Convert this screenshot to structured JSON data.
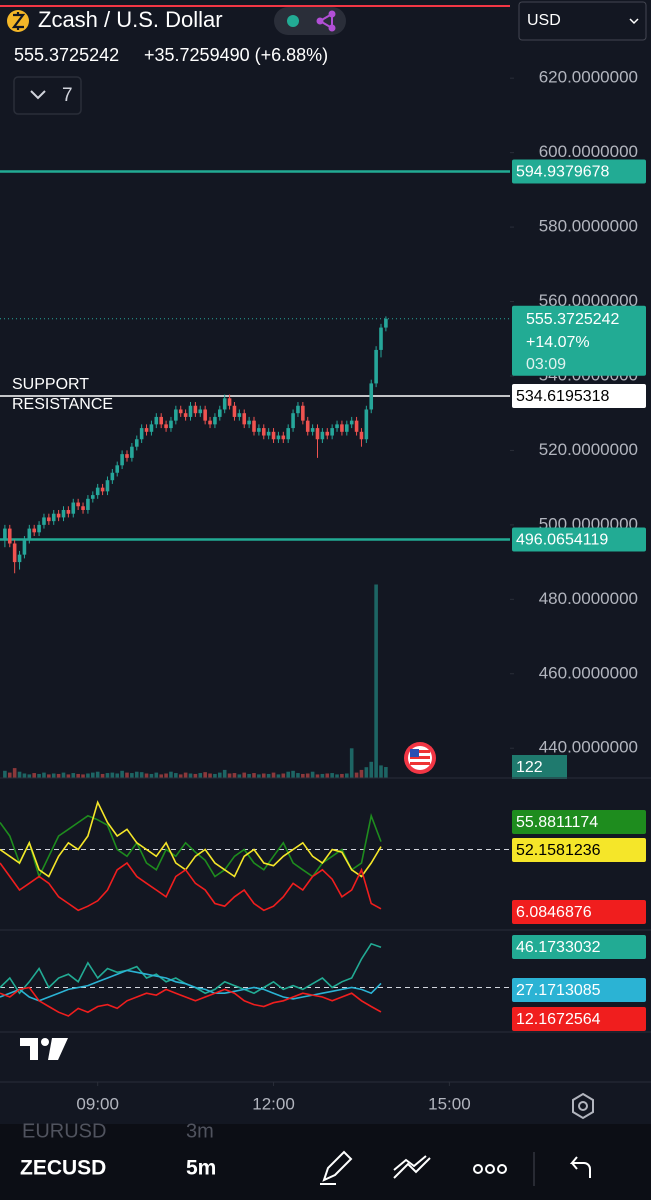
{
  "header": {
    "symbol_name": "Zcash / U.S. Dollar",
    "change": "+35.7259490 (+6.88%)",
    "indicator_count": "7",
    "currency": "USD"
  },
  "footer": {
    "previous_symbol": "EURUSD",
    "previous_interval": "3m",
    "symbol": "ZECUSD",
    "interval": "5m"
  },
  "chart_data": {
    "type": "candlestick",
    "up_color": "#26a69a",
    "down_color": "#ef5350",
    "xlim": [
      "07:20",
      "16:00"
    ],
    "xticks": [
      "09:00",
      "12:00",
      "15:00"
    ],
    "ylim": [
      432,
      641
    ],
    "yticks": [
      {
        "value": 440,
        "label": "440.0000000"
      },
      {
        "value": 460,
        "label": "460.0000000"
      },
      {
        "value": 480,
        "label": "480.0000000"
      },
      {
        "value": 500,
        "label": "500.0000000"
      },
      {
        "value": 520,
        "label": "520.0000000"
      },
      {
        "value": 540,
        "label": "540.0000000"
      },
      {
        "value": 560,
        "label": "560.0000000"
      },
      {
        "value": 580,
        "label": "580.0000000"
      },
      {
        "value": 600,
        "label": "600.0000000"
      },
      {
        "value": 620,
        "label": "620.0000000"
      }
    ],
    "candles": [
      [
        "07:25",
        496,
        500,
        494,
        499
      ],
      [
        "07:30",
        499,
        500,
        494,
        495
      ],
      [
        "07:35",
        495,
        496,
        487,
        490
      ],
      [
        "07:40",
        490,
        493,
        488,
        492
      ],
      [
        "07:45",
        492,
        497,
        491,
        496
      ],
      [
        "07:50",
        496,
        500,
        495,
        499
      ],
      [
        "07:55",
        499,
        500,
        497,
        498
      ],
      [
        "08:00",
        498,
        501,
        497,
        500
      ],
      [
        "08:05",
        500,
        503,
        499,
        502
      ],
      [
        "08:10",
        502,
        503,
        500,
        501
      ],
      [
        "08:15",
        501,
        504,
        500,
        503
      ],
      [
        "08:20",
        503,
        504,
        501,
        502
      ],
      [
        "08:25",
        502,
        505,
        501,
        504
      ],
      [
        "08:30",
        504,
        505,
        502,
        503
      ],
      [
        "08:35",
        503,
        507,
        502,
        506
      ],
      [
        "08:40",
        506,
        507,
        504,
        505
      ],
      [
        "08:45",
        505,
        506,
        503,
        504
      ],
      [
        "08:50",
        504,
        508,
        503,
        507
      ],
      [
        "08:55",
        507,
        509,
        506,
        508
      ],
      [
        "09:00",
        508,
        511,
        507,
        510
      ],
      [
        "09:05",
        510,
        511,
        508,
        509
      ],
      [
        "09:10",
        509,
        513,
        508,
        512
      ],
      [
        "09:15",
        512,
        515,
        511,
        514
      ],
      [
        "09:20",
        514,
        517,
        513,
        516
      ],
      [
        "09:25",
        516,
        520,
        515,
        519
      ],
      [
        "09:30",
        519,
        520,
        517,
        518
      ],
      [
        "09:35",
        518,
        522,
        517,
        521
      ],
      [
        "09:40",
        521,
        524,
        520,
        523
      ],
      [
        "09:45",
        523,
        527,
        522,
        526
      ],
      [
        "09:50",
        526,
        527,
        524,
        525
      ],
      [
        "09:55",
        525,
        528,
        524,
        527
      ],
      [
        "10:00",
        527,
        530,
        526,
        529
      ],
      [
        "10:05",
        529,
        530,
        526,
        527
      ],
      [
        "10:10",
        527,
        528,
        525,
        526
      ],
      [
        "10:15",
        526,
        529,
        525,
        528
      ],
      [
        "10:20",
        528,
        532,
        527,
        531
      ],
      [
        "10:25",
        531,
        532,
        529,
        530
      ],
      [
        "10:30",
        530,
        531,
        528,
        529
      ],
      [
        "10:35",
        529,
        533,
        528,
        532
      ],
      [
        "10:40",
        532,
        533,
        529,
        530
      ],
      [
        "10:45",
        530,
        532,
        529,
        531
      ],
      [
        "10:50",
        531,
        532,
        527,
        528
      ],
      [
        "10:55",
        528,
        529,
        526,
        527
      ],
      [
        "11:00",
        527,
        530,
        526,
        529
      ],
      [
        "11:05",
        529,
        532,
        528,
        531
      ],
      [
        "11:10",
        531,
        535,
        530,
        534
      ],
      [
        "11:15",
        534,
        535,
        531,
        532
      ],
      [
        "11:20",
        532,
        533,
        528,
        529
      ],
      [
        "11:25",
        529,
        531,
        528,
        530
      ],
      [
        "11:30",
        530,
        531,
        526,
        527
      ],
      [
        "11:35",
        527,
        529,
        526,
        528
      ],
      [
        "11:40",
        528,
        529,
        524,
        525
      ],
      [
        "11:45",
        525,
        527,
        524,
        526
      ],
      [
        "11:50",
        526,
        527,
        523,
        524
      ],
      [
        "11:55",
        524,
        526,
        523,
        525
      ],
      [
        "12:00",
        525,
        526,
        522,
        523
      ],
      [
        "12:05",
        523,
        525,
        522,
        524
      ],
      [
        "12:10",
        524,
        525,
        522,
        523
      ],
      [
        "12:15",
        523,
        527,
        522,
        526
      ],
      [
        "12:20",
        526,
        531,
        525,
        530
      ],
      [
        "12:25",
        530,
        533,
        529,
        532
      ],
      [
        "12:30",
        532,
        533,
        527,
        528
      ],
      [
        "12:35",
        528,
        529,
        524,
        525
      ],
      [
        "12:40",
        525,
        527,
        524,
        526
      ],
      [
        "12:45",
        526,
        527,
        518,
        523
      ],
      [
        "12:50",
        523,
        526,
        522,
        525
      ],
      [
        "12:55",
        525,
        526,
        523,
        524
      ],
      [
        "13:00",
        524,
        527,
        523,
        526
      ],
      [
        "13:05",
        526,
        528,
        525,
        527
      ],
      [
        "13:10",
        527,
        528,
        524,
        525
      ],
      [
        "13:15",
        525,
        528,
        524,
        527
      ],
      [
        "13:20",
        527,
        529,
        526,
        528
      ],
      [
        "13:25",
        528,
        529,
        524,
        525
      ],
      [
        "13:30",
        525,
        526,
        521,
        523
      ],
      [
        "13:35",
        523,
        532,
        522,
        531
      ],
      [
        "13:40",
        531,
        539,
        530,
        538
      ],
      [
        "13:45",
        538,
        548,
        537,
        547
      ],
      [
        "13:50",
        547,
        554,
        545,
        553
      ],
      [
        "13:55",
        553,
        556,
        552,
        555.3725242
      ]
    ],
    "volumes": [
      80,
      60,
      110,
      70,
      50,
      40,
      55,
      45,
      60,
      40,
      50,
      45,
      60,
      40,
      55,
      45,
      40,
      50,
      60,
      70,
      45,
      55,
      60,
      50,
      80,
      60,
      55,
      70,
      65,
      50,
      45,
      60,
      40,
      50,
      70,
      55,
      40,
      60,
      50,
      45,
      55,
      65,
      50,
      45,
      60,
      90,
      50,
      55,
      40,
      60,
      45,
      55,
      40,
      50,
      45,
      60,
      40,
      50,
      70,
      80,
      55,
      45,
      50,
      70,
      40,
      45,
      50,
      55,
      40,
      45,
      50,
      330,
      60,
      90,
      120,
      180,
      2150,
      140,
      122
    ],
    "levels": [
      {
        "value": 594.9379678,
        "color": "#22ab94"
      },
      {
        "value": 534.6195318,
        "color": "#ffffff",
        "notes": [
          "SUPPORT",
          "RESISTANCE"
        ]
      },
      {
        "value": 496.0654119,
        "color": "#22ab94"
      }
    ],
    "last_price_change": "+14.07%",
    "countdown": "03:09",
    "indicator_times": [
      "07:20",
      "07:30",
      "07:40",
      "07:50",
      "08:00",
      "08:10",
      "08:20",
      "08:30",
      "08:40",
      "08:50",
      "09:00",
      "09:10",
      "09:20",
      "09:30",
      "09:40",
      "09:50",
      "10:00",
      "10:10",
      "10:20",
      "10:30",
      "10:40",
      "10:50",
      "11:00",
      "11:10",
      "11:20",
      "11:30",
      "11:40",
      "11:50",
      "12:00",
      "12:10",
      "12:20",
      "12:30",
      "12:40",
      "12:50",
      "13:00",
      "13:10",
      "13:20",
      "13:30",
      "13:40",
      "13:50"
    ],
    "panes": [
      {
        "ylim": [
          0,
          100
        ],
        "level": 50,
        "series": [
          {
            "color": "#1e8c1e",
            "values": [
              70,
              60,
              40,
              55,
              30,
              45,
              60,
              65,
              70,
              75,
              72,
              68,
              50,
              45,
              55,
              40,
              35,
              50,
              45,
              55,
              48,
              42,
              30,
              35,
              45,
              50,
              40,
              35,
              45,
              55,
              40,
              35,
              30,
              40,
              45,
              50,
              35,
              40,
              75,
              55.8811174
            ]
          },
          {
            "color": "#f5e629",
            "values": [
              50,
              45,
              40,
              55,
              35,
              30,
              45,
              55,
              50,
              60,
              85,
              70,
              60,
              65,
              55,
              50,
              45,
              55,
              40,
              35,
              45,
              50,
              40,
              35,
              30,
              45,
              50,
              40,
              38,
              45,
              50,
              55,
              45,
              40,
              50,
              48,
              35,
              30,
              40,
              52.1581236
            ]
          },
          {
            "color": "#f01e1e",
            "values": [
              40,
              30,
              20,
              25,
              30,
              25,
              15,
              10,
              5,
              8,
              12,
              20,
              35,
              40,
              30,
              25,
              20,
              15,
              30,
              35,
              25,
              20,
              10,
              8,
              15,
              20,
              10,
              5,
              8,
              15,
              25,
              20,
              30,
              35,
              28,
              15,
              20,
              35,
              10,
              6.0846876
            ]
          }
        ]
      },
      {
        "ylim": [
          0,
          50
        ],
        "level": 25,
        "series": [
          {
            "color": "#22ab94",
            "values": [
              25,
              30,
              22,
              28,
              35,
              25,
              30,
              32,
              28,
              38,
              30,
              35,
              33,
              34,
              36,
              30,
              32,
              28,
              30,
              27,
              25,
              22,
              24,
              28,
              26,
              24,
              22,
              25,
              28,
              24,
              26,
              24,
              27,
              30,
              25,
              28,
              30,
              40,
              48,
              46.1733032
            ]
          },
          {
            "color": "#2bb3d4",
            "values": [
              20,
              22,
              24,
              20,
              18,
              20,
              22,
              24,
              25,
              26,
              28,
              30,
              32,
              34,
              33,
              32,
              31,
              30,
              28,
              27,
              25,
              24,
              22,
              22,
              23,
              24,
              25,
              24,
              22,
              20,
              19,
              20,
              21,
              22,
              23,
              24,
              25,
              24,
              22,
              27.1713085
            ]
          },
          {
            "color": "#f01e1e",
            "values": [
              22,
              20,
              24,
              25,
              18,
              15,
              12,
              10,
              14,
              12,
              15,
              16,
              14,
              18,
              20,
              22,
              21,
              24,
              22,
              20,
              18,
              20,
              22,
              24,
              22,
              18,
              16,
              15,
              17,
              18,
              20,
              22,
              21,
              20,
              18,
              20,
              22,
              18,
              15,
              12.1672564
            ]
          }
        ]
      }
    ]
  }
}
